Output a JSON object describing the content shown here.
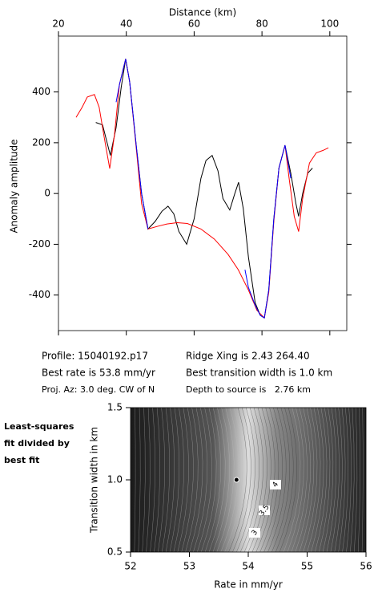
{
  "chart_data": [
    {
      "type": "line",
      "xlabel": "Distance (km)",
      "ylabel": "Anomaly amplitude",
      "xlim": [
        20,
        105
      ],
      "xticks": [
        20,
        40,
        60,
        80,
        100
      ],
      "ylim": [
        -540,
        620
      ],
      "yticks": [
        -400,
        -200,
        0,
        200,
        400
      ],
      "series": [
        {
          "color": "#000000",
          "x": [
            31,
            33,
            35.3,
            37,
            38.5,
            39.8,
            41,
            43,
            44.5,
            46.4,
            48.5,
            50.5,
            52.3,
            54,
            55.5,
            57.8,
            60,
            62,
            63.5,
            65.3,
            67,
            68.5,
            70.5,
            72,
            73.1,
            74.5,
            76,
            78,
            79.5,
            80.7,
            82,
            83.5,
            85,
            86.8,
            88.5,
            90,
            90.8,
            92,
            93.5,
            94.9
          ],
          "values": [
            280,
            270,
            150,
            260,
            420,
            530,
            440,
            180,
            0,
            -140,
            -110,
            -70,
            -50,
            -80,
            -150,
            -200,
            -100,
            60,
            130,
            150,
            90,
            -20,
            -65,
            0,
            44,
            -60,
            -250,
            -430,
            -480,
            -490,
            -380,
            -100,
            100,
            190,
            80,
            -40,
            -90,
            0,
            80,
            100
          ]
        },
        {
          "color": "#ff0000",
          "x": [
            25.2,
            27,
            28.5,
            30.6,
            32,
            33.5,
            35.1,
            36.5,
            38,
            39.8,
            41,
            43,
            44.5,
            46.4,
            49,
            52,
            55,
            58,
            62,
            66,
            70,
            73,
            76,
            78.5,
            80.7,
            82,
            83.5,
            85,
            86.8,
            88,
            89.5,
            90.8,
            92,
            94,
            96,
            98,
            99.6
          ],
          "values": [
            300,
            340,
            380,
            390,
            340,
            220,
            98,
            230,
            430,
            530,
            440,
            170,
            -40,
            -140,
            -130,
            -120,
            -115,
            -118,
            -140,
            -180,
            -240,
            -300,
            -380,
            -460,
            -490,
            -390,
            -110,
            100,
            190,
            60,
            -90,
            -150,
            -20,
            120,
            160,
            170,
            180
          ]
        },
        {
          "color": "#0000ff",
          "x": [
            37,
            38,
            39.8,
            41,
            43,
            44.5,
            46.4,
            null,
            75,
            76,
            78,
            79.5,
            80.7,
            82,
            83.5,
            85,
            86.8,
            88.5
          ],
          "values": [
            360,
            430,
            530,
            440,
            180,
            0,
            -140,
            null,
            -300,
            -370,
            -440,
            -480,
            -490,
            -380,
            -100,
            100,
            190,
            60
          ]
        }
      ],
      "annotations": [
        "Profile: 15040192.p17",
        "Best rate is 53.8 mm/yr",
        "Proj. Az: 3.0 deg. CW of N",
        "Ridge Xing is 2.43 264.40",
        "Best transition width is 1.0 km",
        "Depth to source is   2.76 km"
      ]
    },
    {
      "type": "contour",
      "xlabel": "Rate in mm/yr",
      "ylabel": "Transition width in km",
      "xlim": [
        52,
        56
      ],
      "xticks": [
        52,
        53,
        54,
        55,
        56
      ],
      "ylim": [
        0.5,
        1.5
      ],
      "yticks": [
        0.5,
        {
          "value": 1,
          "label": "1.0"
        },
        1.5
      ],
      "best_fit": {
        "x": 53.8,
        "y": 1.0
      },
      "contour_labels": [
        4,
        3.5,
        3
      ],
      "annotation": [
        "Least-squares",
        "fit divided by",
        "best fit"
      ]
    }
  ]
}
